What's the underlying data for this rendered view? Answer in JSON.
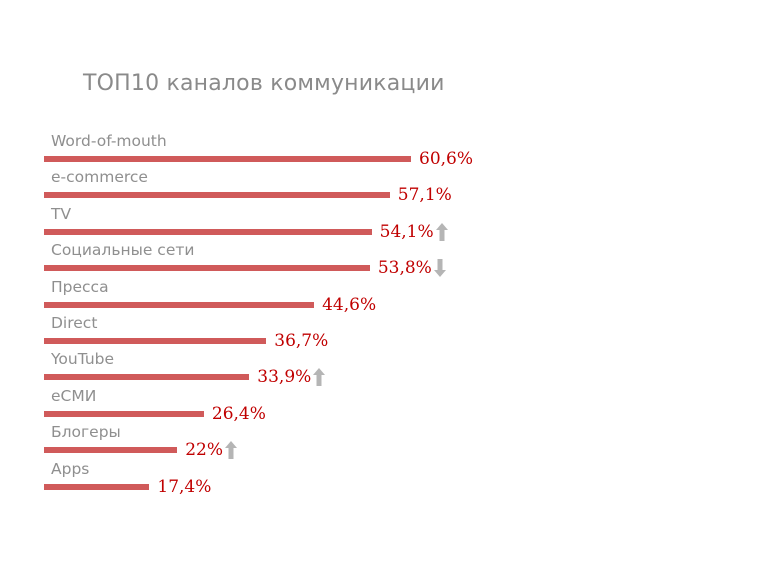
{
  "chart_data": {
    "type": "bar",
    "title": "ТОП10 каналов коммуникации",
    "xlabel": "",
    "ylabel": "",
    "xlim": [
      0,
      70
    ],
    "grid": false,
    "categories": [
      "Word-of-mouth",
      "e-commerce",
      "TV",
      "Социальные сети",
      "Пресса",
      "Direct",
      "YouTube",
      "еСМИ",
      "Блогеры",
      "Apps"
    ],
    "values": [
      60.6,
      57.1,
      54.1,
      53.8,
      44.6,
      36.7,
      33.9,
      26.4,
      22,
      17.4
    ],
    "value_labels": [
      "60,6%",
      "57,1%",
      "54,1%",
      "53,8%",
      "44,6%",
      "36,7%",
      "33,9%",
      "26,4%",
      "22%",
      "17,4%"
    ],
    "trend": [
      "",
      "",
      "up",
      "down",
      "",
      "",
      "up",
      "",
      "up",
      ""
    ],
    "bar_color": "#d05a5a",
    "value_color": "#c00000",
    "label_color": "#8f8f8f",
    "arrow_color": "#b5b5b5"
  }
}
